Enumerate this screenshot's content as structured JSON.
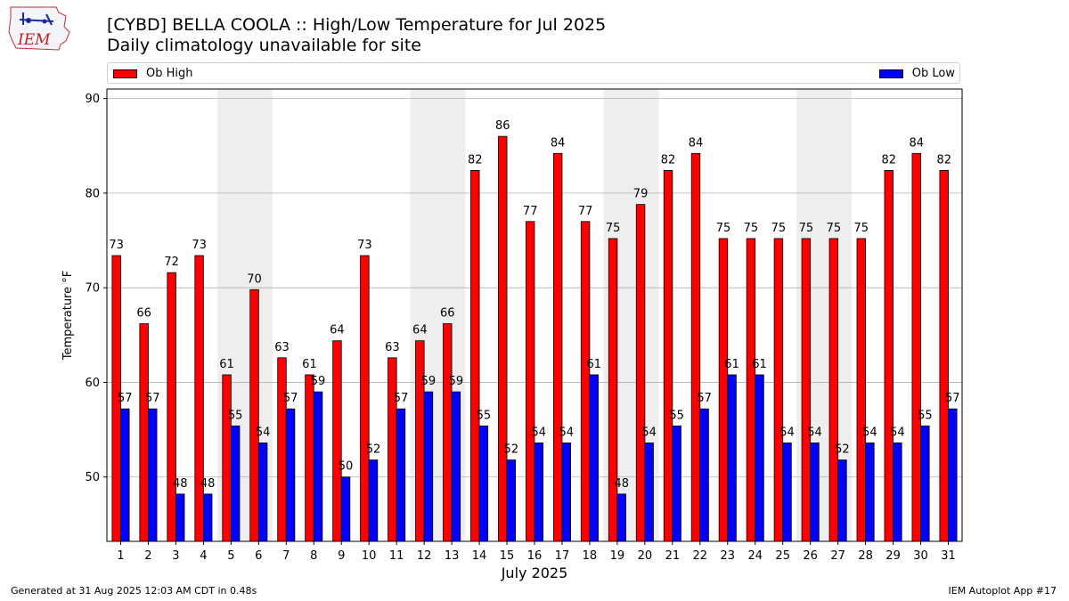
{
  "header": {
    "title": "[CYBD] BELLA COOLA :: High/Low Temperature for Jul 2025",
    "subtitle": "Daily climatology unavailable for site",
    "logo_text": "IEM"
  },
  "legend": {
    "high_label": "Ob High",
    "low_label": "Ob Low"
  },
  "colors": {
    "high": "#ff0000",
    "low": "#0000ff",
    "weekend_band": "#eeeeee",
    "grid": "#b0b0b0"
  },
  "footer": {
    "left": "Generated at 31 Aug 2025 12:03 AM CDT in 0.48s",
    "right": "IEM Autoplot App #17"
  },
  "chart_data": {
    "type": "bar",
    "xlabel": "July 2025",
    "ylabel": "Temperature °F",
    "ylim": [
      43.2,
      91.0
    ],
    "yticks": [
      50,
      60,
      70,
      80,
      90
    ],
    "grid": true,
    "legend_placement": "top",
    "categories": [
      "1",
      "2",
      "3",
      "4",
      "5",
      "6",
      "7",
      "8",
      "9",
      "10",
      "11",
      "12",
      "13",
      "14",
      "15",
      "16",
      "17",
      "18",
      "19",
      "20",
      "21",
      "22",
      "23",
      "24",
      "25",
      "26",
      "27",
      "28",
      "29",
      "30",
      "31"
    ],
    "shaded_days": [
      5,
      6,
      12,
      13,
      19,
      20,
      26,
      27
    ],
    "series": [
      {
        "name": "Ob High",
        "values": [
          73.4,
          66.2,
          71.6,
          73.4,
          60.8,
          69.8,
          62.6,
          60.8,
          64.4,
          73.4,
          62.6,
          64.4,
          66.2,
          82.4,
          86.0,
          77.0,
          84.2,
          77.0,
          75.2,
          78.8,
          82.4,
          84.2,
          75.2,
          75.2,
          75.2,
          75.2,
          75.2,
          75.2,
          82.4,
          84.2,
          82.4
        ],
        "labels": [
          "73",
          "66",
          "72",
          "73",
          "61",
          "70",
          "63",
          "61",
          "64",
          "73",
          "63",
          "64",
          "66",
          "82",
          "86",
          "77",
          "84",
          "77",
          "75",
          "79",
          "82",
          "84",
          "75",
          "75",
          "75",
          "75",
          "75",
          "75",
          "82",
          "84",
          "82"
        ]
      },
      {
        "name": "Ob Low",
        "values": [
          57.2,
          57.2,
          48.2,
          48.2,
          55.4,
          53.6,
          57.2,
          59.0,
          50.0,
          51.8,
          57.2,
          59.0,
          59.0,
          55.4,
          51.8,
          53.6,
          53.6,
          60.8,
          48.2,
          53.6,
          55.4,
          57.2,
          60.8,
          60.8,
          53.6,
          53.6,
          51.8,
          53.6,
          53.6,
          55.4,
          57.2
        ],
        "labels": [
          "57",
          "57",
          "48",
          "48",
          "55",
          "54",
          "57",
          "59",
          "50",
          "52",
          "57",
          "59",
          "59",
          "55",
          "52",
          "54",
          "54",
          "61",
          "48",
          "54",
          "55",
          "57",
          "61",
          "61",
          "54",
          "54",
          "52",
          "54",
          "54",
          "55",
          "57"
        ]
      }
    ]
  }
}
